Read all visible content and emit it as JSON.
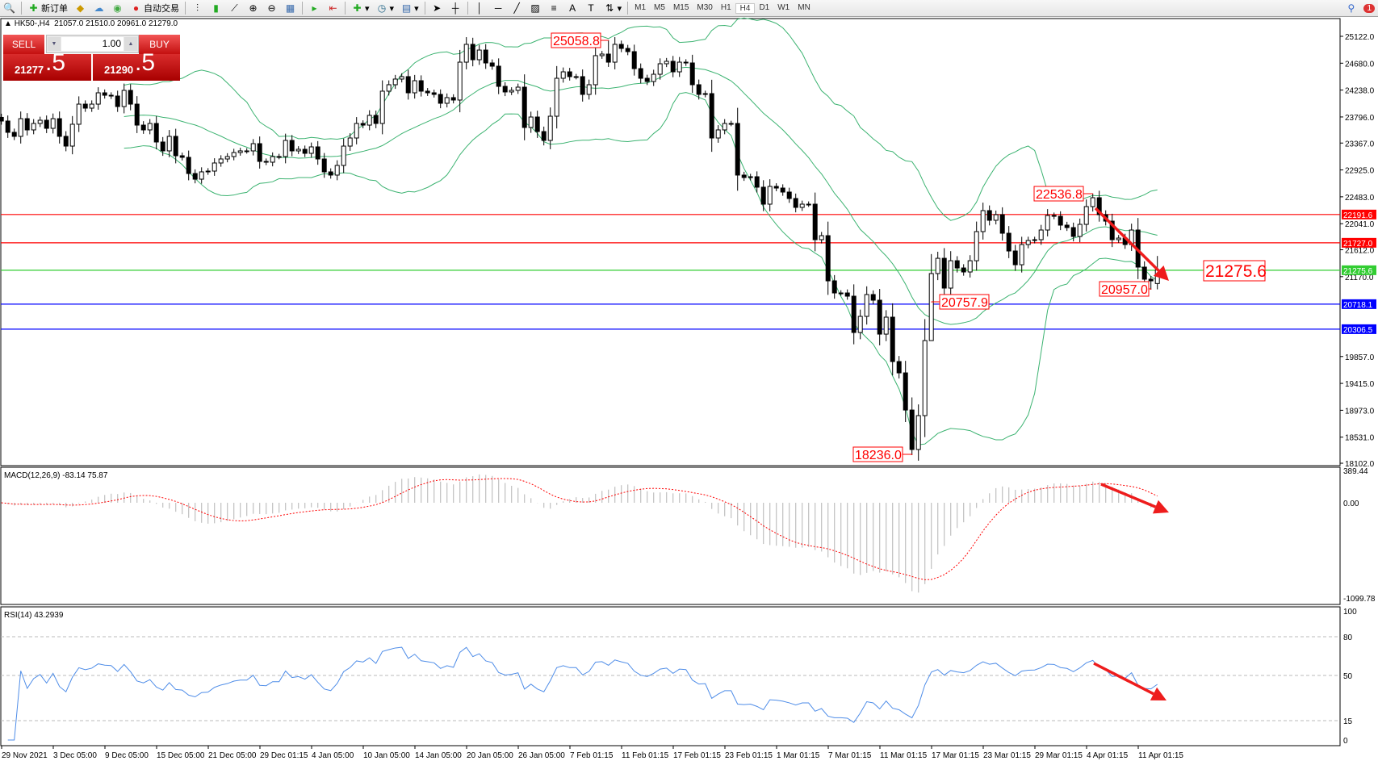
{
  "toolbar": {
    "new_order": "新订单",
    "auto_trading": "自动交易",
    "timeframes": [
      "M1",
      "M5",
      "M15",
      "M30",
      "H1",
      "H4",
      "D1",
      "W1",
      "MN"
    ],
    "active_timeframe": "H4",
    "notification_count": "1"
  },
  "chart_header": {
    "symbol": "HK50-,H4",
    "open": "21057.0",
    "high": "21510.0",
    "low": "20961.0",
    "close": "21279.0"
  },
  "trade_panel": {
    "sell_label": "SELL",
    "buy_label": "BUY",
    "lot": "1.00",
    "sell_main": "21277",
    "sell_frac": ".5",
    "buy_main": "21290",
    "buy_frac": ".5"
  },
  "colors": {
    "bands": "#3cb371",
    "resistance": "#ff0000",
    "support": "#0000ff",
    "current": "#32cd32",
    "macd_hist": "#c0c0c0",
    "macd_signal": "#ff0000",
    "rsi": "#4f8de8",
    "arrow": "#ee1c1c"
  },
  "chart_data": {
    "type": "candlestick",
    "closes": [
      23729,
      23543,
      23477,
      23768,
      23583,
      23689,
      23742,
      23609,
      23768,
      23477,
      23317,
      23676,
      24007,
      23941,
      24007,
      24193,
      24153,
      24140,
      23967,
      24233,
      24007,
      23662,
      23583,
      23689,
      23384,
      23238,
      23477,
      23158,
      23132,
      22866,
      22773,
      22893,
      22906,
      23039,
      23105,
      23145,
      23211,
      23238,
      23238,
      23357,
      23065,
      23052,
      23145,
      23145,
      23410,
      23238,
      23264,
      23198,
      23304,
      23105,
      22893,
      22840,
      22999,
      23317,
      23450,
      23689,
      23662,
      23822,
      23689,
      24220,
      24326,
      24419,
      24459,
      24193,
      24392,
      24220,
      24193,
      24167,
      24021,
      24114,
      24074,
      24697,
      24990,
      24737,
      24896,
      24684,
      24631,
      24299,
      24207,
      24233,
      24286,
      23623,
      23795,
      23556,
      23410,
      23808,
      24432,
      24538,
      24459,
      24459,
      24167,
      24326,
      24804,
      24830,
      24697,
      24990,
      24923,
      24870,
      24591,
      24432,
      24379,
      24498,
      24671,
      24711,
      24538,
      24697,
      24684,
      24326,
      24167,
      24180,
      23450,
      23583,
      23689,
      23689,
      22840,
      22800,
      22813,
      22641,
      22362,
      22654,
      22627,
      22561,
      22455,
      22309,
      22362,
      22362,
      21778,
      21844,
      21101,
      20902,
      20902,
      20849,
      20252,
      20517,
      20876,
      20783,
      20225,
      20504,
      19774,
      19588,
      18977,
      18328,
      18885,
      20119,
      21221,
      21472,
      20982,
      21432,
      21313,
      21247,
      21432,
      21911,
      22256,
      22097,
      22189,
      21884,
      21592,
      21366,
      21698,
      21765,
      21778,
      21937,
      22176,
      22163,
      22017,
      21977,
      21831,
      22030,
      22322,
      22468,
      22189,
      22083,
      21778,
      21804,
      21698,
      21937,
      21327,
      21128,
      21101,
      21279
    ],
    "last_bar": {
      "open": 21057.0,
      "high": 21510.0,
      "low": 20961.0,
      "close": 21279.0
    },
    "price_ticks": [
      "25122.0",
      "24680.0",
      "24238.0",
      "23796.0",
      "23367.0",
      "22925.0",
      "22483.0",
      "22041.0",
      "21612.0",
      "21170.0",
      "19857.0",
      "19415.0",
      "18973.0",
      "18531.0",
      "18102.0"
    ],
    "time_labels": [
      "29 Nov 2021",
      "3 Dec 05:00",
      "9 Dec 05:00",
      "15 Dec 05:00",
      "21 Dec 05:00",
      "29 Dec 01:15",
      "4 Jan 05:00",
      "10 Jan 05:00",
      "14 Jan 05:00",
      "20 Jan 05:00",
      "26 Jan 05:00",
      "7 Feb 01:15",
      "11 Feb 01:15",
      "17 Feb 01:15",
      "23 Feb 01:15",
      "1 Mar 01:15",
      "7 Mar 01:15",
      "11 Mar 01:15",
      "17 Mar 01:15",
      "23 Mar 01:15",
      "29 Mar 01:15",
      "4 Apr 01:15",
      "11 Apr 01:15"
    ],
    "markers": [
      {
        "text": "25058.8",
        "bar": 94,
        "kind": "high"
      },
      {
        "text": "22536.8",
        "bar": 169,
        "kind": "high"
      },
      {
        "text": "20757.9",
        "bar": 144,
        "kind": "low"
      },
      {
        "text": "20957.0",
        "bar": 178,
        "kind": "low"
      },
      {
        "text": "18236.0",
        "bar": 141,
        "kind": "low"
      }
    ],
    "hlines": [
      {
        "price": 22191.6,
        "label": "22191.6",
        "role": "resistance"
      },
      {
        "price": 21727.0,
        "label": "21727.0",
        "role": "resistance"
      },
      {
        "price": 21275.6,
        "label": "21275.6",
        "role": "current"
      },
      {
        "price": 20718.1,
        "label": "20718.1",
        "role": "support"
      },
      {
        "price": 20306.5,
        "label": "20306.5",
        "role": "support"
      }
    ],
    "current_price_callout": "21275.6",
    "bollinger": {
      "period": 20,
      "deviation": 2
    },
    "macd": {
      "title": "MACD(12,26,9) -83.14 75.87",
      "fast": 12,
      "slow": 26,
      "signal": 9,
      "axis_top": "389.44",
      "axis_zero": "0.00",
      "axis_bottom": "-1099.78",
      "max": 389.44,
      "min": -1099.78
    },
    "rsi": {
      "title": "RSI(14) 43.2939",
      "period": 14,
      "levels": [
        80,
        50,
        15
      ],
      "axis": [
        "100",
        "80",
        "50",
        "15",
        "0"
      ]
    }
  }
}
